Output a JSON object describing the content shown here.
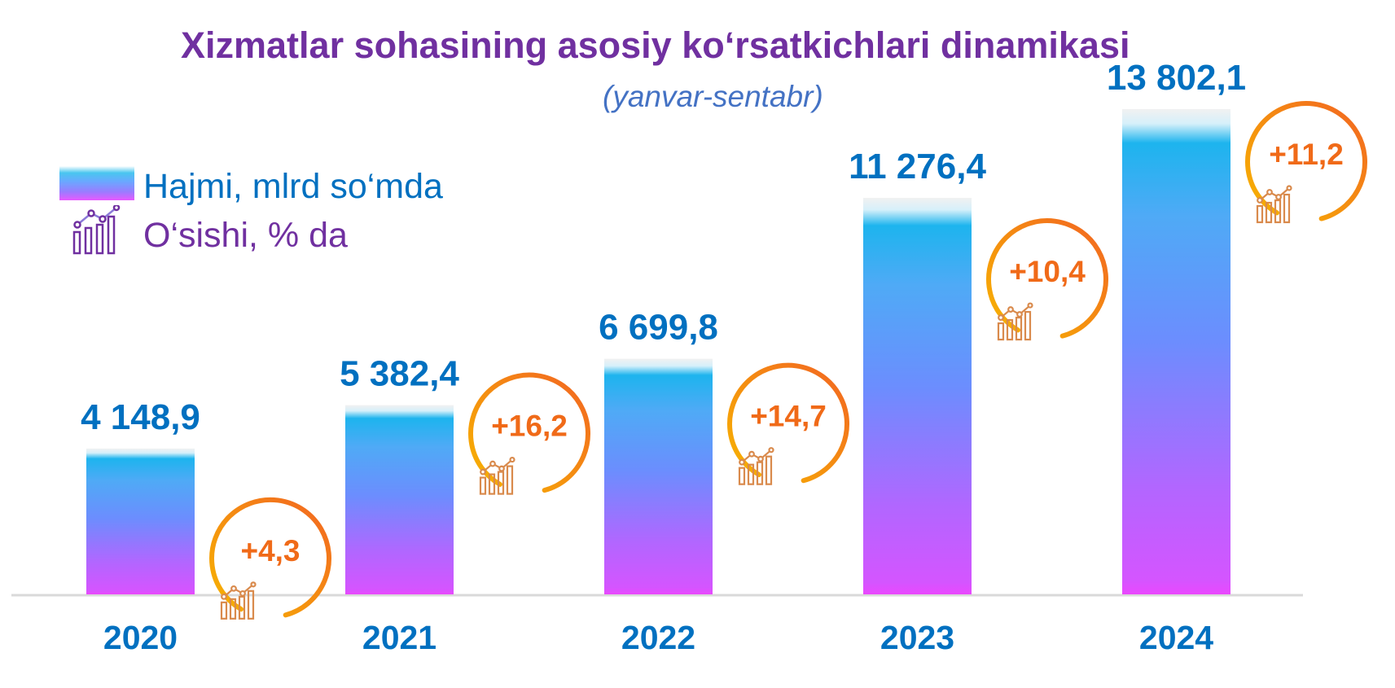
{
  "chart_data": {
    "type": "bar",
    "title": "Xizmatlar sohasining asosiy ko‘rsatkichlari dinamikasi",
    "subtitle": "(yanvar-sentabr)",
    "categories": [
      "2020",
      "2021",
      "2022",
      "2023",
      "2024"
    ],
    "series": [
      {
        "name": "Hajmi, mlrd so‘mda",
        "values": [
          4148.9,
          5382.4,
          6699.8,
          11276.4,
          13802.1
        ],
        "value_labels": [
          "4 148,9",
          "5 382,4",
          "6 699,8",
          "11 276,4",
          "13 802,1"
        ]
      },
      {
        "name": "O‘sishi, % da",
        "values": [
          4.3,
          16.2,
          14.7,
          10.4,
          11.2
        ],
        "value_labels": [
          "+4,3",
          "+16,2",
          "+14,7",
          "+10,4",
          "+11,2"
        ]
      }
    ],
    "ylim": [
      0,
      13802.1
    ],
    "grid": false,
    "legend_position": "top-left",
    "colors": {
      "bar_top": "#0bb0ec",
      "bar_mid": "#6e8cff",
      "bar_bottom": "#e84dff",
      "value_label": "#0070c0",
      "growth_label": "#f06a18",
      "growth_ring_start": "#f7b500",
      "growth_ring_end": "#f26522",
      "title": "#7030a0",
      "subtitle": "#4472c4"
    },
    "icons": {
      "growth": "bar-chart-growth-icon"
    }
  }
}
